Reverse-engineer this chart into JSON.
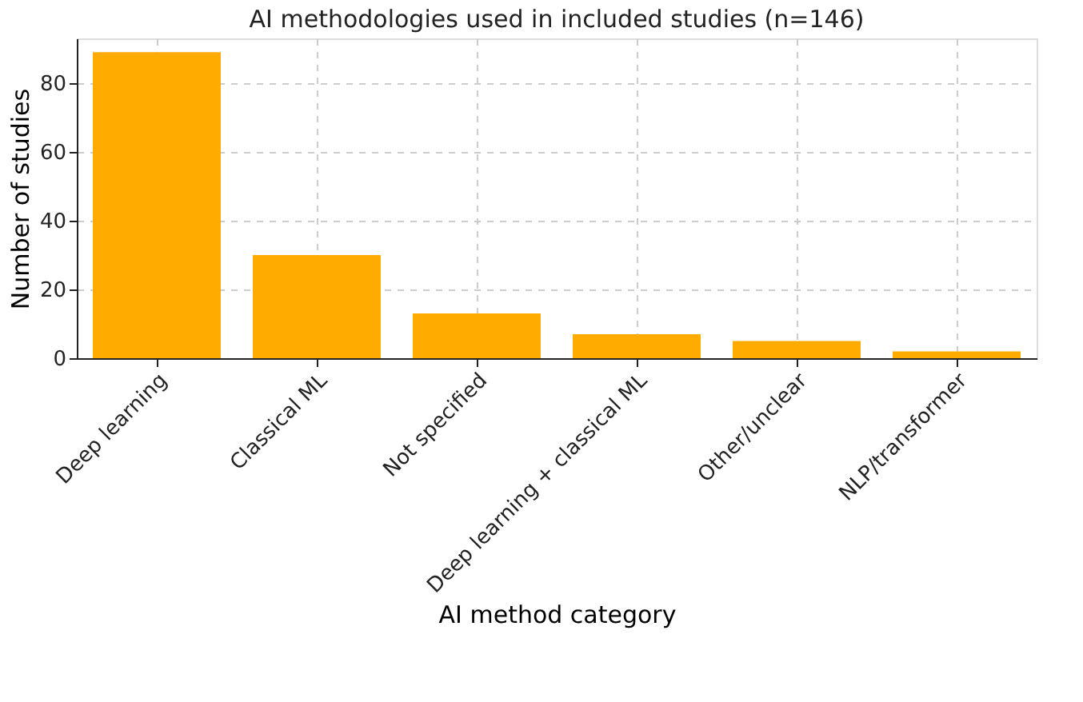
{
  "chart_data": {
    "type": "bar",
    "title": "AI methodologies used in included studies (n=146)",
    "xlabel": "AI method category",
    "ylabel": "Number of studies",
    "categories": [
      "Deep learning",
      "Classical ML",
      "Not specified",
      "Deep learning + classical ML",
      "Other/unclear",
      "NLP/transformer"
    ],
    "values": [
      89,
      30,
      13,
      7,
      5,
      2
    ],
    "color": "#ffab00",
    "ylim": [
      0,
      93
    ],
    "yticks": [
      0,
      20,
      40,
      60,
      80
    ],
    "grid": true
  }
}
